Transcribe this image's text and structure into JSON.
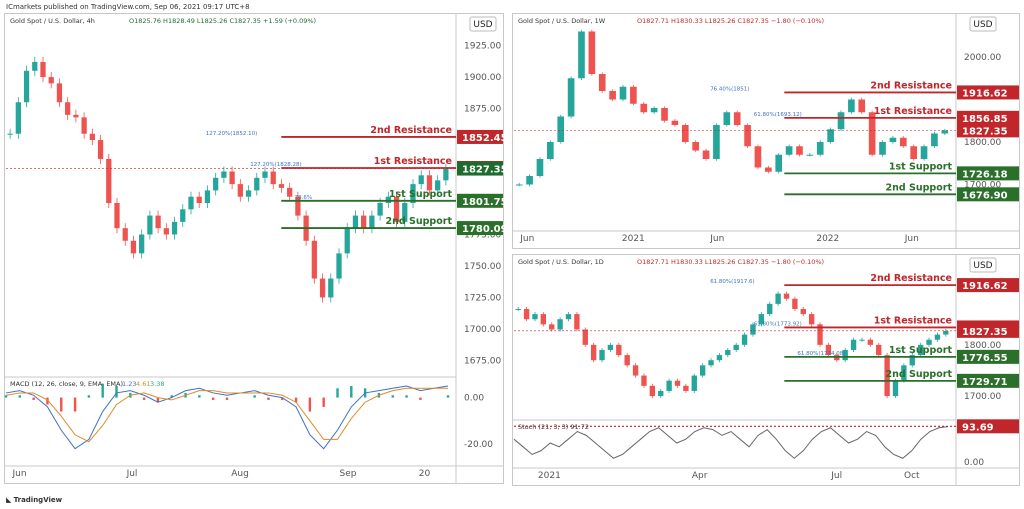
{
  "header": {
    "published_by": "ICmarkets published on TradingView.com, Sep 06, 2021 09:17 UTC+8"
  },
  "footer": {
    "brand": "TradingView"
  },
  "colors": {
    "resistance": "#c0262a",
    "support": "#2a6f2a",
    "price": "#1f6b2f",
    "up": "#26a69a",
    "down": "#ef5350",
    "axis": "#555555"
  },
  "chart_data": [
    {
      "type": "line",
      "title": "Gold Spot / U.S. Dollar, 4h",
      "ohlc_label": "O1825.76 H1828.49 L1825.26 C1827.35 +1.59 (+0.09%)",
      "currency": "USD",
      "x_ticks": [
        "Jun",
        "Jul",
        "Aug",
        "Sep",
        "20"
      ],
      "y_ticks": [
        "1925.00",
        "1900.00",
        "1875.00",
        "1850.00",
        "1825.00",
        "1800.00",
        "1775.00",
        "1750.00",
        "1725.00",
        "1700.00",
        "1675.00"
      ],
      "ylim": [
        1665,
        1935
      ],
      "x_tick_pos": [
        0.03,
        0.28,
        0.52,
        0.76,
        0.93
      ],
      "series": [
        {
          "values": [
            1855,
            1880,
            1905,
            1912,
            1900,
            1895,
            1880,
            1870,
            1868,
            1855,
            1850,
            1835,
            1800,
            1780,
            1770,
            1760,
            1775,
            1790,
            1780,
            1775,
            1785,
            1795,
            1805,
            1800,
            1810,
            1820,
            1825,
            1815,
            1805,
            1810,
            1820,
            1825,
            1815,
            1812,
            1805,
            1790,
            1770,
            1740,
            1725,
            1740,
            1760,
            1780,
            1790,
            1780,
            1790,
            1800,
            1805,
            1785,
            1800,
            1815,
            1822,
            1810,
            1818,
            1827
          ]
        }
      ],
      "levels": [
        {
          "label": "2nd Resistance",
          "value": 1852.45,
          "value_label": "1852.45",
          "kind": "resistance"
        },
        {
          "label": "1st Resistance",
          "value": 1827.81,
          "value_label": "1827.81",
          "kind": "resistance"
        },
        {
          "label": "1st Support",
          "value": 1801.75,
          "value_label": "1801.75",
          "kind": "support"
        },
        {
          "label": "2nd Support",
          "value": 1780.09,
          "value_label": "1780.09",
          "kind": "support"
        }
      ],
      "current_price": {
        "value": 1827.35,
        "value_label": "1827.35"
      },
      "annotations": [
        "127.20%(1852.10)",
        "127.20%(1828.28)",
        "78.6%"
      ],
      "indicator": {
        "label": "MACD (12, 26, close, 9, EMA, EMA)",
        "values": [
          "1.23",
          "4.61",
          "3.38"
        ],
        "y_ticks": [
          "0.00",
          "-20.00"
        ],
        "ylim": [
          -26,
          8
        ],
        "macd": [
          2,
          3,
          1,
          -4,
          -14,
          -22,
          -18,
          -6,
          2,
          3,
          1,
          -2,
          0,
          3,
          4,
          2,
          1,
          2,
          3,
          1,
          0,
          -4,
          -16,
          -22,
          -14,
          -4,
          2,
          3,
          4,
          5,
          3,
          4,
          5
        ],
        "signal": [
          1,
          2,
          2,
          -1,
          -8,
          -16,
          -19,
          -12,
          -3,
          1,
          2,
          0,
          -1,
          1,
          3,
          3,
          2,
          2,
          2,
          2,
          1,
          -2,
          -10,
          -18,
          -18,
          -9,
          -2,
          1,
          3,
          4,
          4,
          4,
          4
        ]
      }
    },
    {
      "type": "line",
      "title": "Gold Spot / U.S. Dollar, 1W",
      "ohlc_label": "O1827.71 H1830.33 L1825.26 C1827.35 −1.80 (−0.10%)",
      "currency": "USD",
      "x_ticks": [
        "Jun",
        "2021",
        "Jun",
        "2022",
        "Jun"
      ],
      "y_ticks": [
        "2000.00",
        "1800.00",
        "1700.00"
      ],
      "ylim": [
        1600,
        2080
      ],
      "x_tick_pos": [
        0.03,
        0.27,
        0.46,
        0.71,
        0.9
      ],
      "series": [
        {
          "values": [
            1700,
            1720,
            1760,
            1800,
            1860,
            1950,
            2060,
            1960,
            1920,
            1900,
            1930,
            1890,
            1870,
            1880,
            1850,
            1840,
            1800,
            1780,
            1760,
            1840,
            1870,
            1840,
            1790,
            1740,
            1730,
            1770,
            1790,
            1770,
            1770,
            1800,
            1830,
            1870,
            1900,
            1870,
            1770,
            1800,
            1810,
            1790,
            1760,
            1790,
            1820,
            1827
          ]
        }
      ],
      "levels": [
        {
          "label": "2nd Resistance",
          "value": 1916.62,
          "value_label": "1916.62",
          "kind": "resistance"
        },
        {
          "label": "1st Resistance",
          "value": 1856.85,
          "value_label": "1856.85",
          "kind": "resistance"
        },
        {
          "label": "1st Support",
          "value": 1726.18,
          "value_label": "1726.18",
          "kind": "support"
        },
        {
          "label": "2nd Support",
          "value": 1676.9,
          "value_label": "1676.90",
          "kind": "support"
        }
      ],
      "current_price": {
        "value": 1827.35,
        "value_label": "1827.35"
      },
      "annotations": [
        "76.40%(1851)",
        "61.80%(1693.12)"
      ]
    },
    {
      "type": "line",
      "title": "Gold Spot / U.S. Dollar, 1D",
      "ohlc_label": "O1827.71 H1830.33 L1825.26 C1827.35 −1.80 (−0.10%)",
      "currency": "USD",
      "x_ticks": [
        "2021",
        "Apr",
        "Jul",
        "Oct"
      ],
      "y_ticks": [
        "1800.00",
        "1700.00"
      ],
      "ylim": [
        1665,
        1950
      ],
      "x_tick_pos": [
        0.08,
        0.42,
        0.73,
        0.9
      ],
      "series": [
        {
          "values": [
            1870,
            1850,
            1860,
            1840,
            1830,
            1850,
            1860,
            1830,
            1800,
            1770,
            1790,
            1800,
            1780,
            1760,
            1740,
            1720,
            1700,
            1710,
            1730,
            1720,
            1710,
            1740,
            1760,
            1770,
            1780,
            1790,
            1800,
            1820,
            1840,
            1860,
            1880,
            1900,
            1890,
            1870,
            1860,
            1840,
            1800,
            1780,
            1770,
            1790,
            1810,
            1810,
            1800,
            1780,
            1700,
            1730,
            1760,
            1780,
            1800,
            1810,
            1820,
            1827
          ]
        }
      ],
      "levels": [
        {
          "label": "2nd Resistance",
          "value": 1916.62,
          "value_label": "1916.62",
          "kind": "resistance"
        },
        {
          "label": "1st Resistance",
          "value": 1833.95,
          "value_label": "1833.95",
          "kind": "resistance"
        },
        {
          "label": "1st Support",
          "value": 1776.55,
          "value_label": "1776.55",
          "kind": "support"
        },
        {
          "label": "2nd Support",
          "value": 1729.71,
          "value_label": "1729.71",
          "kind": "support"
        }
      ],
      "current_price": {
        "value": 1827.35,
        "value_label": "1827.35"
      },
      "annotations": [
        "61.80%(1917.6)",
        "61.80%(1773.92)",
        "61.80%(1734.08)"
      ],
      "indicator": {
        "label": "Stoch (21, 3, 3) 91.72",
        "value_label": "93.69",
        "value": 93.69,
        "y_ticks": [
          "0.00"
        ],
        "ylim": [
          -5,
          105
        ],
        "k": [
          60,
          40,
          20,
          30,
          50,
          40,
          60,
          80,
          70,
          50,
          30,
          10,
          20,
          40,
          60,
          80,
          90,
          70,
          50,
          60,
          80,
          90,
          85,
          70,
          80,
          60,
          40,
          70,
          85,
          60,
          30,
          10,
          30,
          60,
          80,
          90,
          70,
          50,
          60,
          80,
          70,
          40,
          20,
          10,
          30,
          60,
          80,
          90,
          93
        ]
      }
    }
  ]
}
